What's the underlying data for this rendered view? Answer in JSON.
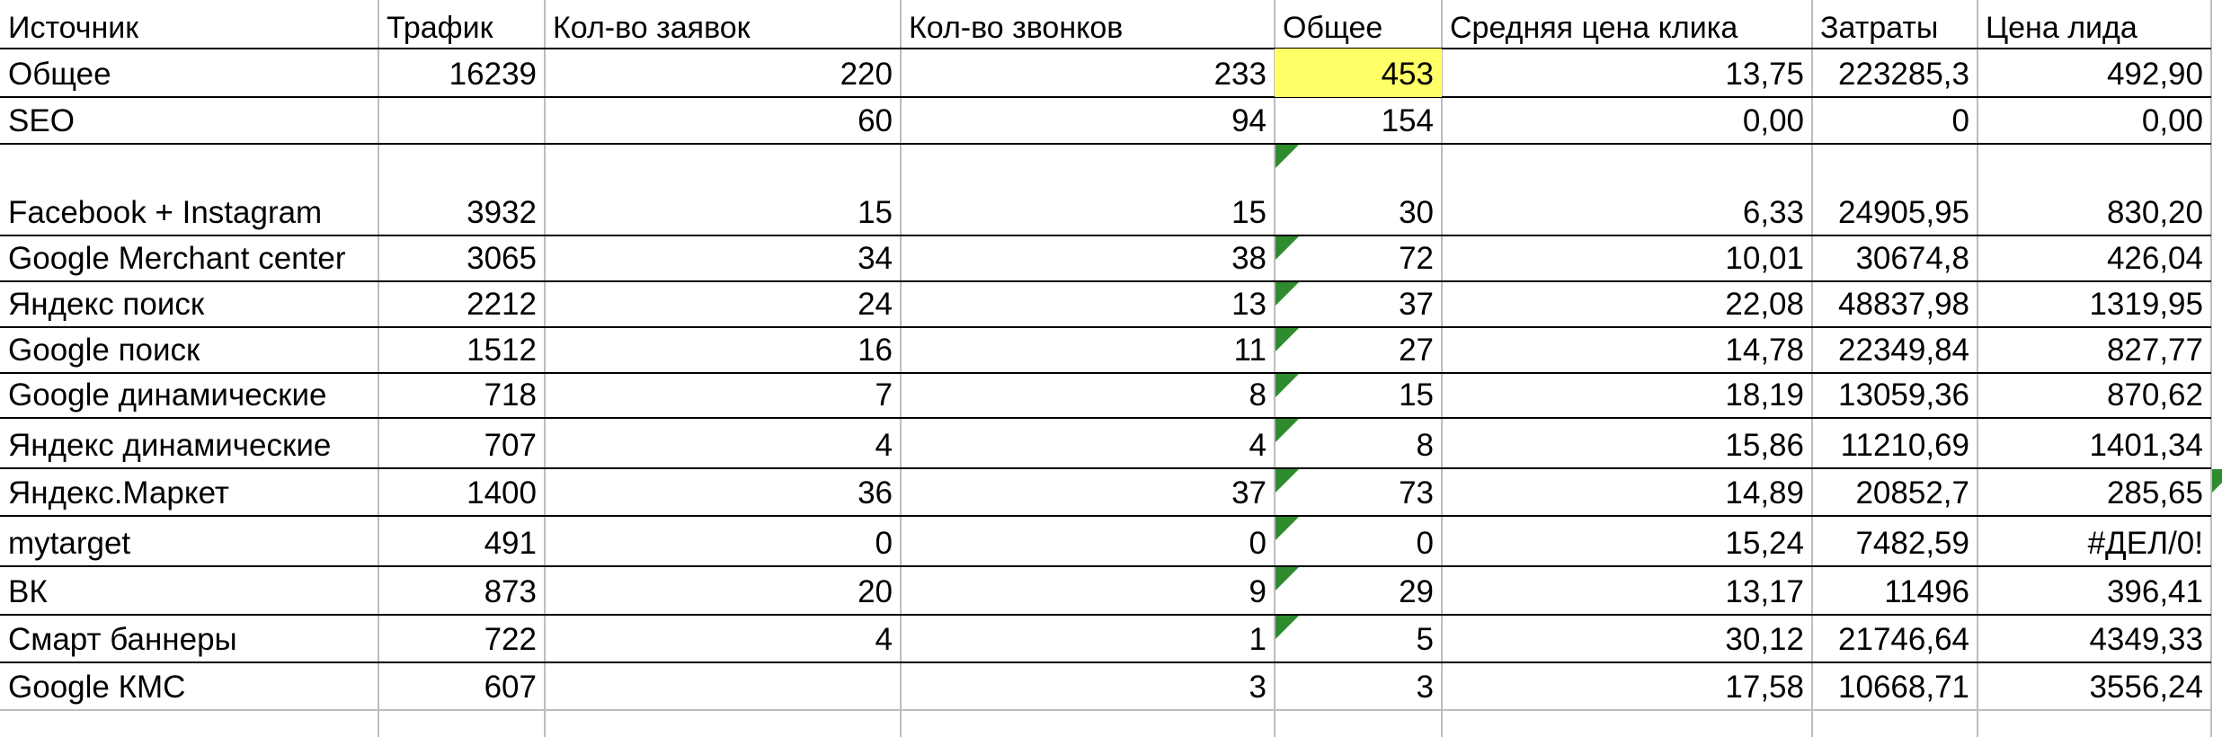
{
  "headers": [
    "Источник",
    "Трафик",
    "Кол-во заявок",
    "Кол-во звонков",
    "Общее",
    "Средняя цена клика",
    "Затраты",
    "Цена лида"
  ],
  "rows": [
    [
      "Общее",
      "16239",
      "220",
      "233",
      "453",
      "13,75",
      "223285,3",
      "492,90"
    ],
    [
      "SEO",
      "",
      "60",
      "94",
      "154",
      "0,00",
      "0",
      "0,00"
    ],
    [
      "Facebook + Instagram",
      "3932",
      "15",
      "15",
      "30",
      "6,33",
      "24905,95",
      "830,20"
    ],
    [
      "Google Merchant center",
      "3065",
      "34",
      "38",
      "72",
      "10,01",
      "30674,8",
      "426,04"
    ],
    [
      "Яндекс поиск",
      "2212",
      "24",
      "13",
      "37",
      "22,08",
      "48837,98",
      "1319,95"
    ],
    [
      "Google поиск",
      "1512",
      "16",
      "11",
      "27",
      "14,78",
      "22349,84",
      "827,77"
    ],
    [
      "Google динамические",
      "718",
      "7",
      "8",
      "15",
      "18,19",
      "13059,36",
      "870,62"
    ],
    [
      "Яндекс динамические",
      "707",
      "4",
      "4",
      "8",
      "15,86",
      "11210,69",
      "1401,34"
    ],
    [
      "Яндекс.Маркет",
      "1400",
      "36",
      "37",
      "73",
      "14,89",
      "20852,7",
      "285,65"
    ],
    [
      "mytarget",
      "491",
      "0",
      "0",
      "0",
      "15,24",
      "7482,59",
      "#ДЕЛ/0!"
    ],
    [
      "ВК",
      "873",
      "20",
      "9",
      "29",
      "13,17",
      "11496",
      "396,41"
    ],
    [
      "Смарт баннеры",
      "722",
      "4",
      "1",
      "5",
      "30,12",
      "21746,64",
      "4349,33"
    ],
    [
      "Google КМС",
      "607",
      "",
      "3",
      "3",
      "17,58",
      "10668,71",
      "3556,24"
    ]
  ],
  "highlight_color": "#ffff66",
  "comment_marker_color": "#2e8b2e"
}
